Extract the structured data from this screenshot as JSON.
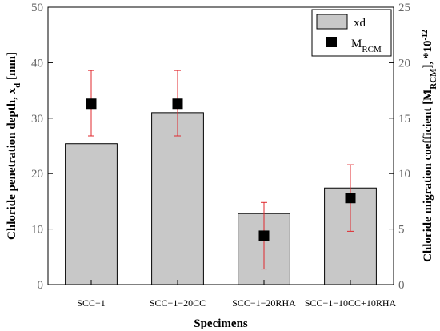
{
  "chart_data": {
    "type": "bar",
    "categories": [
      "SCC−1",
      "SCC−1−20CC",
      "SCC−1−20RHA",
      "SCC−1−10CC+10RHA"
    ],
    "series": [
      {
        "name": "xd",
        "kind": "bar",
        "axis": "left",
        "values": [
          25.4,
          31.0,
          12.8,
          17.4
        ]
      },
      {
        "name": "MRCM",
        "kind": "scatter",
        "axis": "right",
        "values": [
          16.3,
          16.3,
          4.4,
          7.8
        ],
        "error_low": [
          13.4,
          13.4,
          1.4,
          4.8
        ],
        "error_high": [
          19.3,
          19.3,
          7.4,
          10.8
        ]
      }
    ],
    "xlabel": "Specimens",
    "ylabel_left": {
      "text": "Chloride penetration depth, x",
      "sub": "d",
      "suffix": " [mm]"
    },
    "ylabel_right": {
      "text": "Chloride migration coefficient [M",
      "sub": "RCM",
      "suffix": "], *10",
      "sup": "-12"
    },
    "ylim_left": [
      0,
      50
    ],
    "yticks_left": [
      "0",
      "10",
      "20",
      "30",
      "40",
      "50"
    ],
    "ylim_right": [
      0,
      25
    ],
    "yticks_right": [
      "0",
      "5",
      "10",
      "15",
      "20",
      "25"
    ],
    "grid": false,
    "legend_position": "top-right",
    "legend": {
      "bar_label": "xd",
      "marker_label": "M",
      "marker_label_sub": "RCM"
    },
    "colors": {
      "bar_fill": "#c8c8c8",
      "bar_stroke": "#000000",
      "marker": "#000000",
      "error_bar": "#e0282e"
    }
  }
}
